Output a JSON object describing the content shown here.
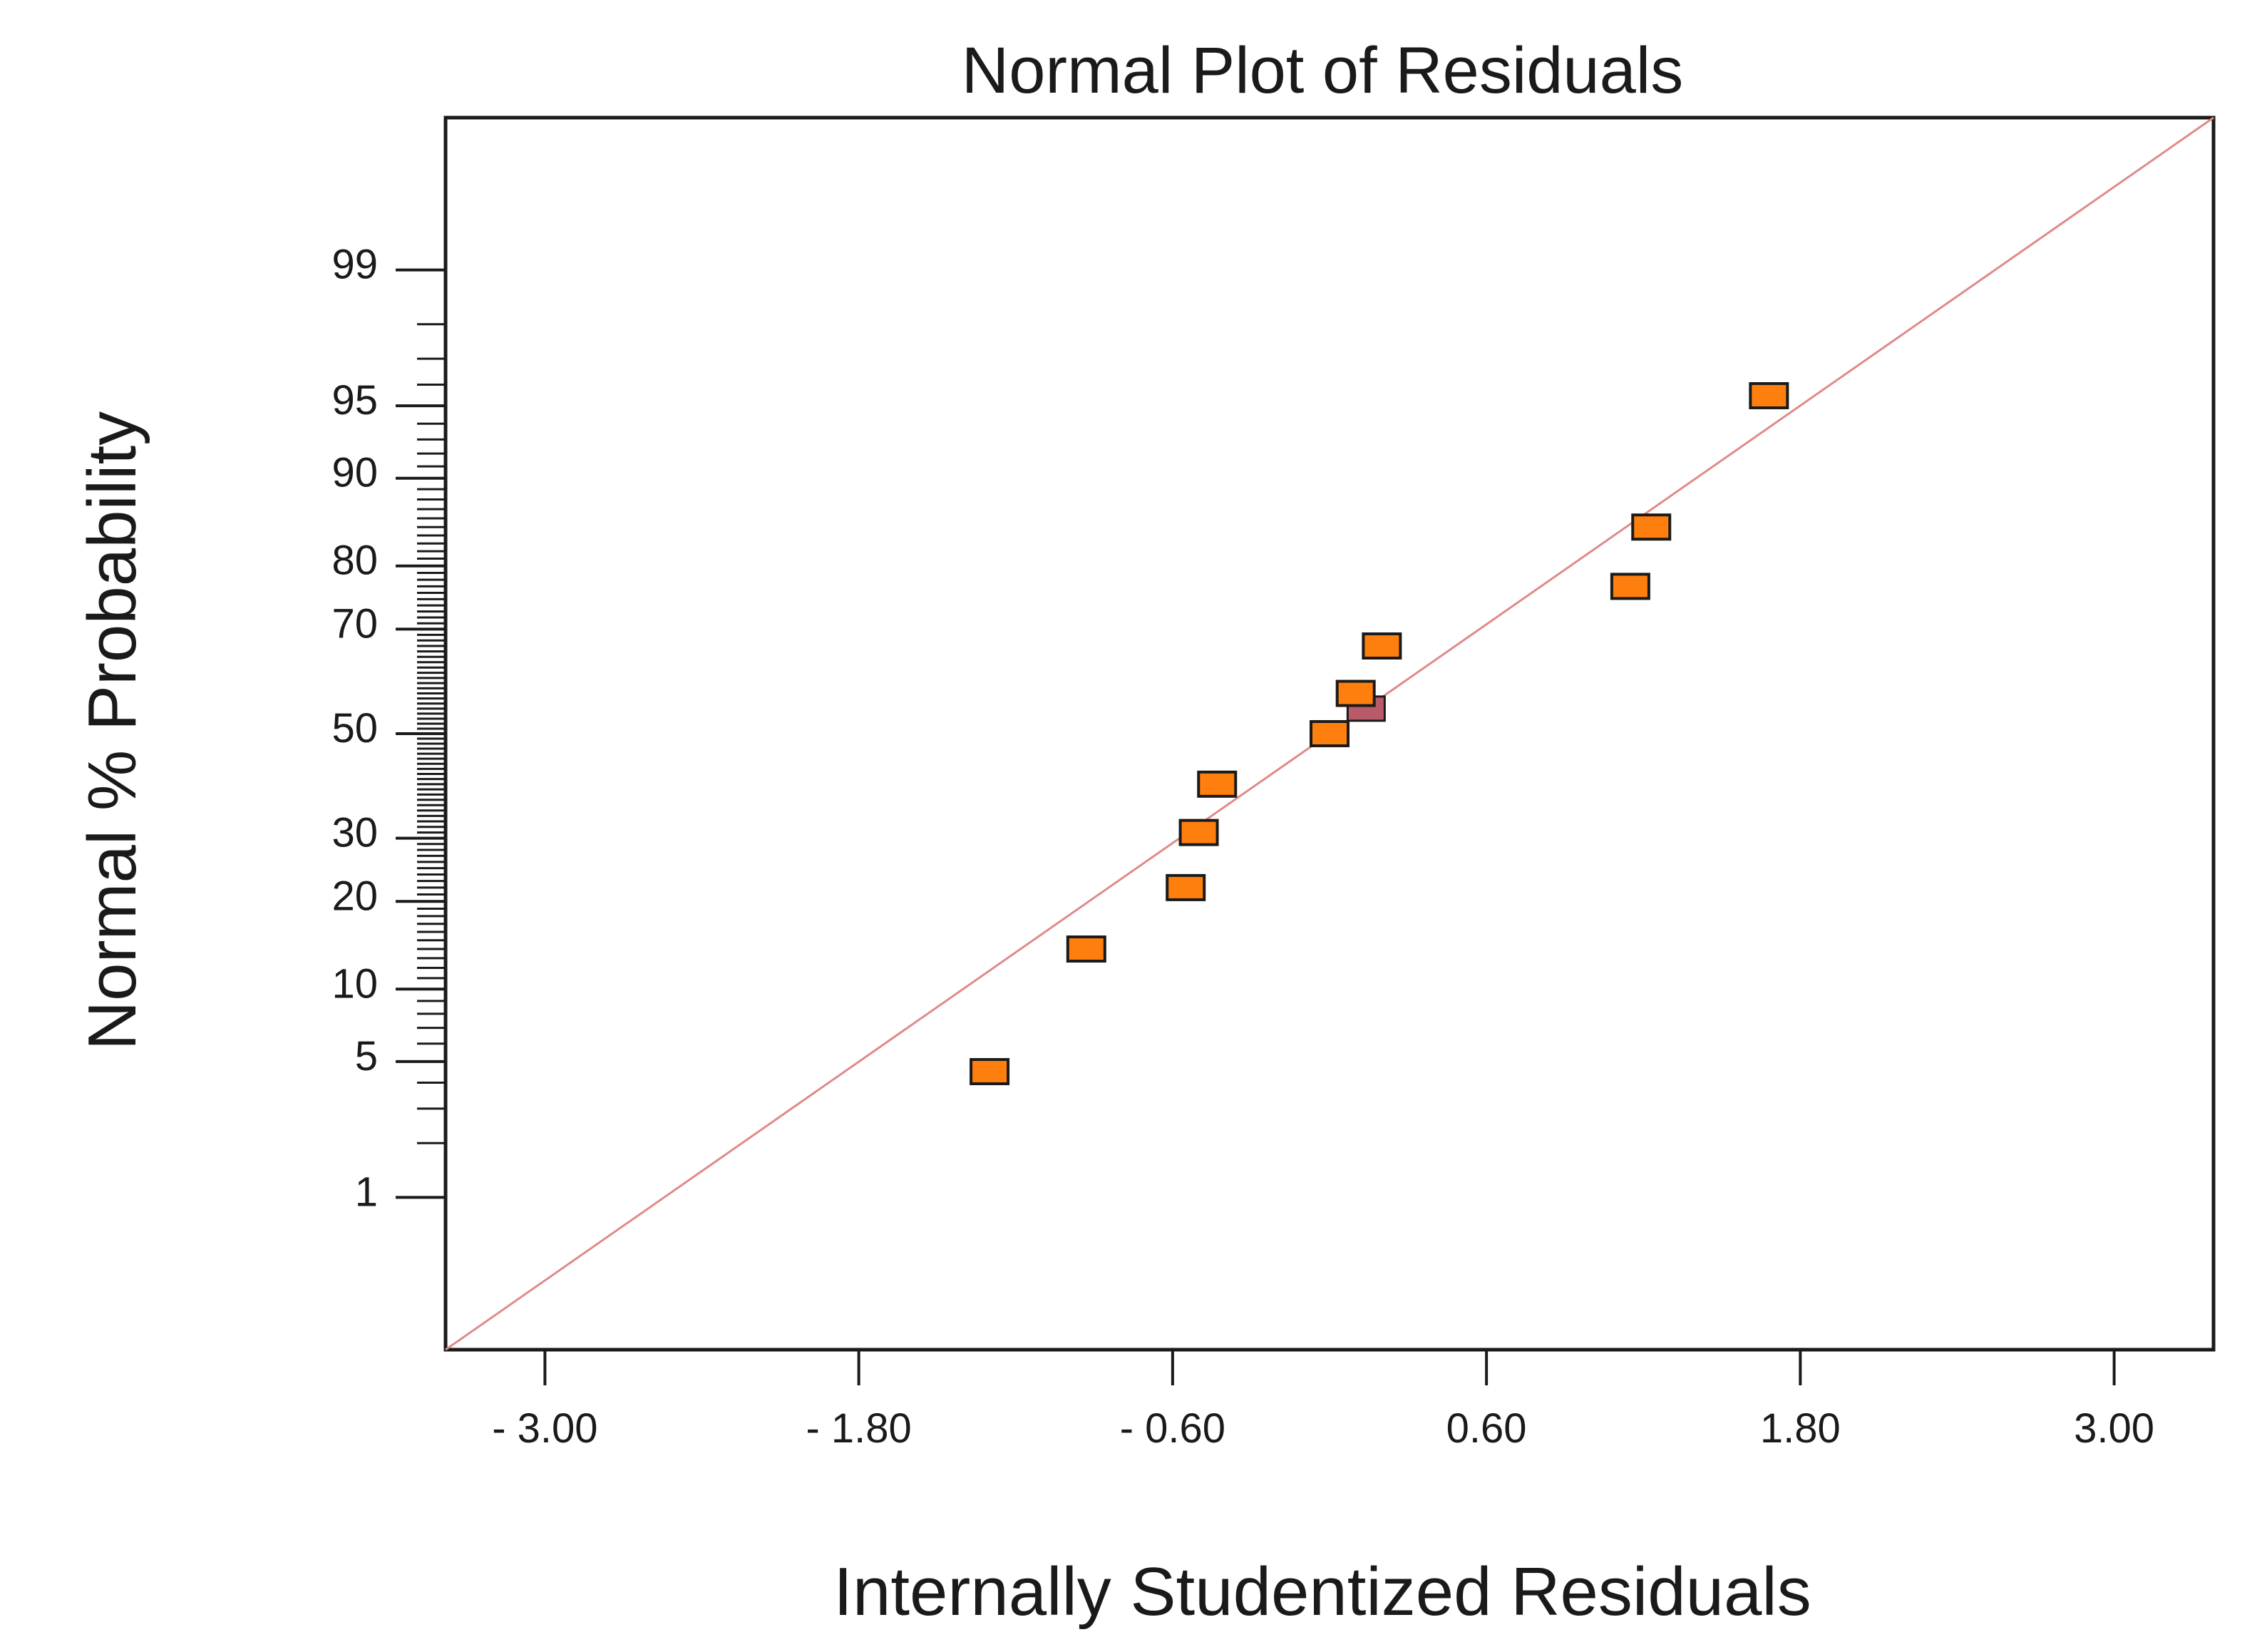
{
  "chart_data": {
    "type": "scatter",
    "title": "Normal Plot of Residuals",
    "xlabel": "Internally Studentized Residuals",
    "ylabel": "Normal % Probability",
    "xlim": [
      -3.38,
      3.38
    ],
    "ylim_probability": [
      0.1,
      99.9
    ],
    "x_ticks": [
      {
        "value": -3.0,
        "label": "- 3.00"
      },
      {
        "value": -1.8,
        "label": "- 1.80"
      },
      {
        "value": -0.6,
        "label": "- 0.60"
      },
      {
        "value": 0.6,
        "label": "0.60"
      },
      {
        "value": 1.8,
        "label": "1.80"
      },
      {
        "value": 3.0,
        "label": "3.00"
      }
    ],
    "y_ticks": [
      {
        "value": 1,
        "label": "1"
      },
      {
        "value": 5,
        "label": "5"
      },
      {
        "value": 10,
        "label": "10"
      },
      {
        "value": 20,
        "label": "20"
      },
      {
        "value": 30,
        "label": "30"
      },
      {
        "value": 50,
        "label": "50"
      },
      {
        "value": 70,
        "label": "70"
      },
      {
        "value": 80,
        "label": "80"
      },
      {
        "value": 90,
        "label": "90"
      },
      {
        "value": 95,
        "label": "95"
      },
      {
        "value": 99,
        "label": "99"
      }
    ],
    "points": [
      {
        "x": -1.3,
        "y": 4.5
      },
      {
        "x": -0.93,
        "y": 14
      },
      {
        "x": -0.55,
        "y": 22
      },
      {
        "x": -0.5,
        "y": 31
      },
      {
        "x": -0.43,
        "y": 40
      },
      {
        "x": 0.0,
        "y": 50
      },
      {
        "x": 0.1,
        "y": 58
      },
      {
        "x": 0.2,
        "y": 67
      },
      {
        "x": 1.15,
        "y": 77
      },
      {
        "x": 1.23,
        "y": 85
      },
      {
        "x": 1.68,
        "y": 95.5
      }
    ],
    "highlight_point": {
      "x": 0.14,
      "y": 55
    },
    "reference_line": {
      "from": {
        "x": -3.38,
        "y": 0.1
      },
      "to": {
        "x": 3.38,
        "y": 99.9
      }
    },
    "minor_ticks": [
      2,
      3,
      4,
      6,
      7,
      8,
      9,
      11,
      12,
      13,
      14,
      15,
      16,
      17,
      18,
      19,
      21,
      22,
      23,
      24,
      25,
      26,
      27,
      28,
      29,
      31,
      32,
      33,
      34,
      35,
      36,
      37,
      38,
      39,
      40,
      41,
      42,
      43,
      44,
      45,
      46,
      47,
      48,
      49,
      51,
      52,
      53,
      54,
      55,
      56,
      57,
      58,
      59,
      60,
      61,
      62,
      63,
      64,
      65,
      66,
      67,
      68,
      69,
      71,
      72,
      73,
      74,
      75,
      76,
      77,
      78,
      79,
      81,
      82,
      83,
      84,
      85,
      86,
      87,
      88,
      89,
      91,
      92,
      93,
      94,
      96,
      97,
      98
    ],
    "colors": {
      "point_fill": "#ff7f0e",
      "point_stroke": "#1a1a1a",
      "highlight_fill": "#b85a6a",
      "line": "#e08a8a",
      "axis": "#1a1a1a"
    }
  }
}
